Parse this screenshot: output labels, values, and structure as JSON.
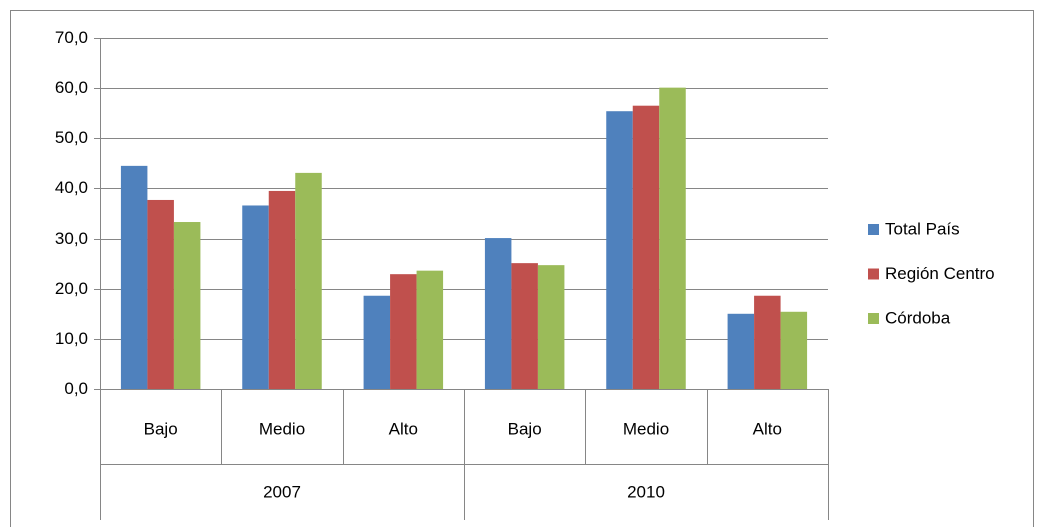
{
  "chart_data": {
    "type": "bar",
    "categories": [
      "Bajo",
      "Medio",
      "Alto",
      "Bajo",
      "Medio",
      "Alto"
    ],
    "groups": [
      "2007",
      "2010"
    ],
    "series": [
      {
        "name": "Total País",
        "color": "#4f81bd",
        "values": [
          44.5,
          36.6,
          18.6,
          30.1,
          55.4,
          15.0
        ]
      },
      {
        "name": "Región Centro",
        "color": "#c0504d",
        "values": [
          37.7,
          39.5,
          22.9,
          25.1,
          56.5,
          18.6
        ]
      },
      {
        "name": "Córdoba",
        "color": "#9bbb59",
        "values": [
          33.3,
          43.1,
          23.6,
          24.7,
          60.1,
          15.4
        ]
      }
    ],
    "ylim": [
      0,
      70
    ],
    "yticks": [
      {
        "value": 0,
        "label": "0,0"
      },
      {
        "value": 10,
        "label": "10,0"
      },
      {
        "value": 20,
        "label": "20,0"
      },
      {
        "value": 30,
        "label": "30,0"
      },
      {
        "value": 40,
        "label": "40,0"
      },
      {
        "value": 50,
        "label": "50,0"
      },
      {
        "value": 60,
        "label": "60,0"
      },
      {
        "value": 70,
        "label": "70,0"
      }
    ],
    "grid": true,
    "legend": "right"
  }
}
